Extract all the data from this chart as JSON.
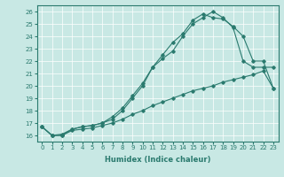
{
  "xlabel": "Humidex (Indice chaleur)",
  "xlim": [
    -0.5,
    23.5
  ],
  "ylim": [
    15.5,
    26.5
  ],
  "yticks": [
    16,
    17,
    18,
    19,
    20,
    21,
    22,
    23,
    24,
    25,
    26
  ],
  "xticks": [
    0,
    1,
    2,
    3,
    4,
    5,
    6,
    7,
    8,
    9,
    10,
    11,
    12,
    13,
    14,
    15,
    16,
    17,
    18,
    19,
    20,
    21,
    22,
    23
  ],
  "line_color": "#2a7a6e",
  "bg_color": "#c8e8e4",
  "line1_x": [
    0,
    1,
    2,
    3,
    4,
    5,
    6,
    7,
    8,
    9,
    10,
    11,
    12,
    13,
    14,
    15,
    16,
    17,
    18,
    19,
    20,
    21,
    22,
    23
  ],
  "line1_y": [
    16.7,
    16.0,
    16.1,
    16.5,
    16.7,
    16.8,
    17.0,
    17.5,
    18.2,
    19.2,
    20.2,
    21.5,
    22.5,
    23.5,
    24.2,
    25.3,
    25.8,
    25.5,
    25.4,
    24.8,
    24.0,
    22.0,
    22.0,
    19.8
  ],
  "line2_x": [
    0,
    1,
    2,
    3,
    4,
    5,
    6,
    7,
    8,
    9,
    10,
    11,
    12,
    13,
    14,
    15,
    16,
    17,
    18,
    19,
    20,
    21,
    22,
    23
  ],
  "line2_y": [
    16.7,
    16.0,
    16.0,
    16.5,
    16.7,
    16.8,
    17.0,
    17.3,
    18.0,
    19.0,
    20.0,
    21.5,
    22.2,
    22.8,
    24.0,
    25.0,
    25.5,
    26.0,
    25.5,
    24.7,
    22.0,
    21.5,
    21.5,
    21.5
  ],
  "line3_x": [
    0,
    1,
    2,
    3,
    4,
    5,
    6,
    7,
    8,
    9,
    10,
    11,
    12,
    13,
    14,
    15,
    16,
    17,
    18,
    19,
    20,
    21,
    22,
    23
  ],
  "line3_y": [
    16.7,
    16.0,
    16.0,
    16.4,
    16.5,
    16.6,
    16.8,
    17.0,
    17.3,
    17.7,
    18.0,
    18.4,
    18.7,
    19.0,
    19.3,
    19.6,
    19.8,
    20.0,
    20.3,
    20.5,
    20.7,
    20.9,
    21.2,
    19.8
  ],
  "tick_fontsize": 5,
  "xlabel_fontsize": 6
}
